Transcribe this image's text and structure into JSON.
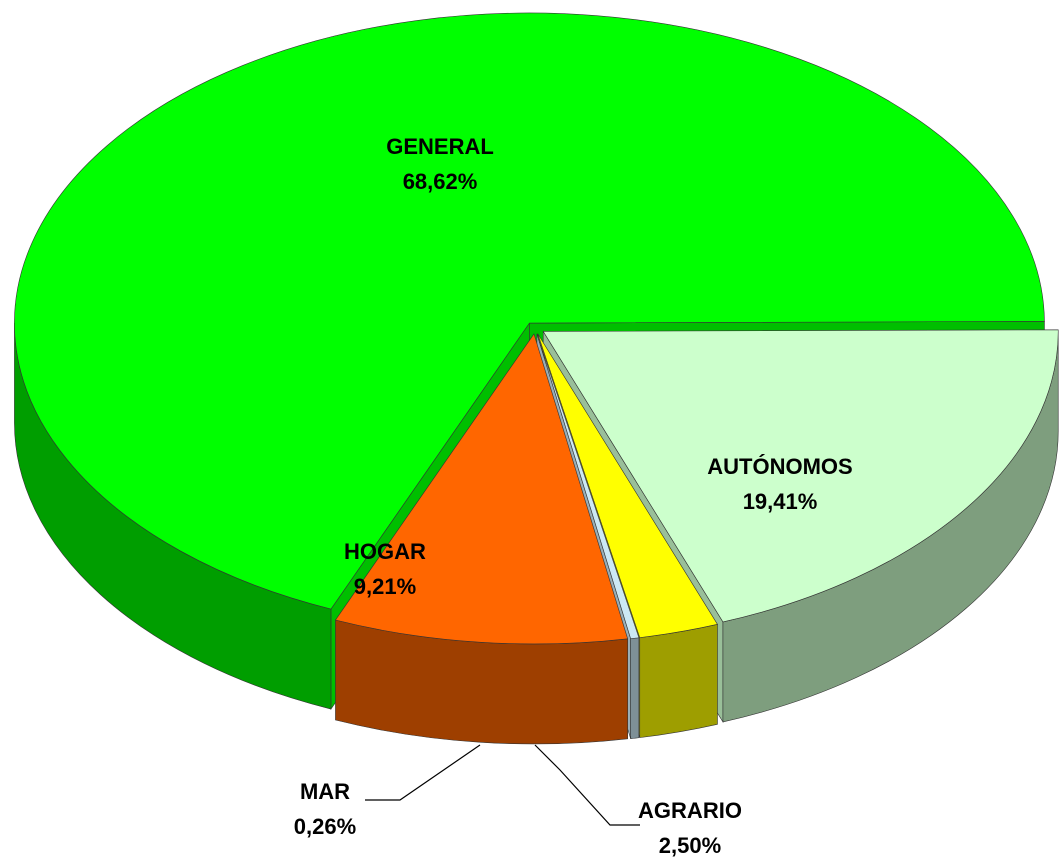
{
  "chart_data": {
    "type": "pie",
    "categories": [
      "GENERAL",
      "AUTÓNOMOS",
      "AGRARIO",
      "MAR",
      "HOGAR"
    ],
    "values": [
      68.62,
      19.41,
      2.5,
      0.26,
      9.21
    ],
    "value_labels": [
      "68,62%",
      "19,41%",
      "2,50%",
      "0,26%",
      "9,21%"
    ],
    "colors": [
      "#00ff00",
      "#ccffcc",
      "#ffff00",
      "#cce8f4",
      "#ff6600"
    ]
  }
}
